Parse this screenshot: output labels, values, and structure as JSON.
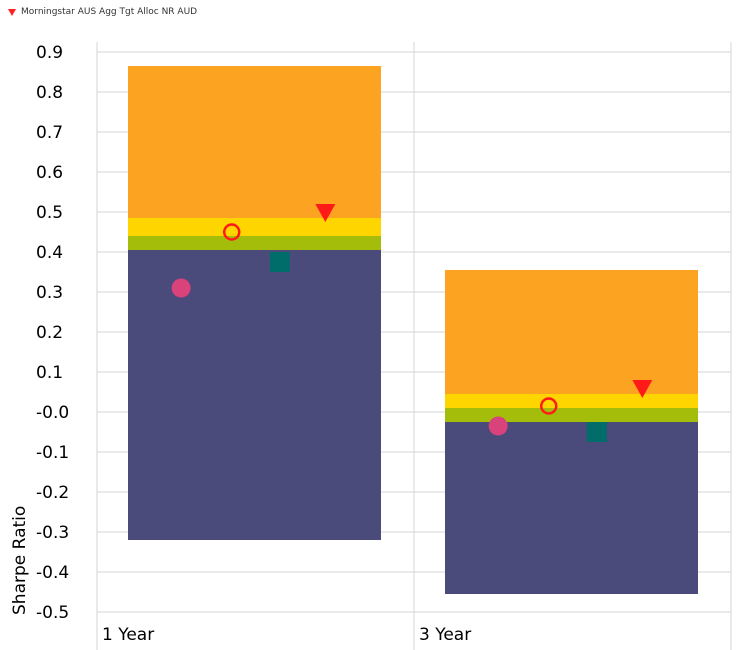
{
  "legend": {
    "visible_entry": {
      "label": "Morningstar AUS Agg Tgt Alloc NR AUD",
      "marker": "triangle-down-icon",
      "color": "#ff2020"
    }
  },
  "chart_data": {
    "type": "bar",
    "subtype": "floating stacked quartile bands with point markers",
    "categories": [
      "1 Year",
      "3 Year"
    ],
    "ylabel": "Sharpe Ratio",
    "ylim": [
      -0.5,
      0.9
    ],
    "yticks": [
      0.9,
      0.8,
      0.7,
      0.6,
      0.5,
      0.4,
      0.3,
      0.2,
      0.1,
      -0.0,
      -0.1,
      -0.2,
      -0.3,
      -0.4,
      -0.5
    ],
    "ytick_labels": [
      "0.9",
      "0.8",
      "0.7",
      "0.6",
      "0.5",
      "0.4",
      "0.3",
      "0.2",
      "0.1",
      "-0.0",
      "-0.1",
      "-0.2",
      "-0.3",
      "-0.4",
      "-0.5"
    ],
    "grid": true,
    "bands": [
      {
        "color": "#4b4b7b",
        "values": [
          [
            -0.32,
            0.405
          ],
          [
            -0.455,
            -0.025
          ]
        ]
      },
      {
        "color": "#a4bc0a",
        "values": [
          [
            0.405,
            0.44
          ],
          [
            -0.025,
            0.01
          ]
        ]
      },
      {
        "color": "#ffd500",
        "values": [
          [
            0.44,
            0.485
          ],
          [
            0.01,
            0.045
          ]
        ]
      },
      {
        "color": "#fca321",
        "values": [
          [
            0.485,
            0.865
          ],
          [
            0.045,
            0.355
          ]
        ]
      }
    ],
    "markers": [
      {
        "shape": "circle",
        "color": "#d9427a",
        "values": [
          0.31,
          -0.035
        ],
        "offset": -0.29
      },
      {
        "shape": "ring",
        "color": "#ff1a1a",
        "values": [
          0.45,
          0.015
        ],
        "offset": -0.09
      },
      {
        "shape": "square",
        "color": "#006d6b",
        "values": [
          0.375,
          -0.05
        ],
        "offset": 0.1
      },
      {
        "shape": "triangle-down",
        "color": "#ff1a1a",
        "values": [
          0.495,
          0.055
        ],
        "offset": 0.28
      }
    ]
  }
}
